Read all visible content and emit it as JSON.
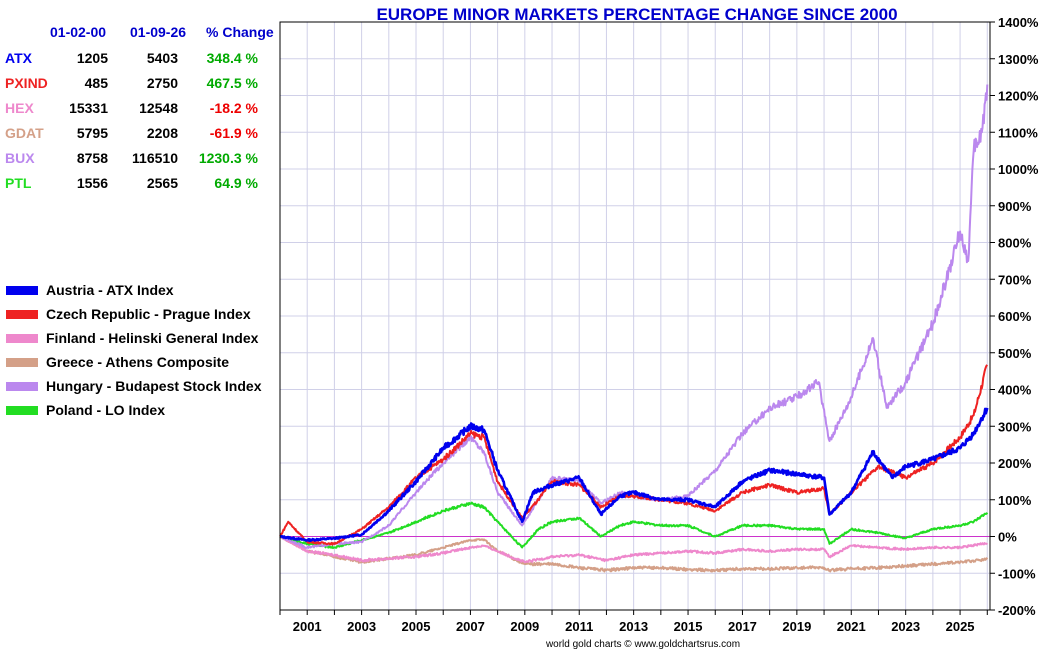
{
  "chart_data": {
    "type": "line",
    "title": "EUROPE MINOR MARKETS PERCENTAGE CHANGE SINCE 2000",
    "footer": "world gold charts © www.goldchartsrus.com",
    "ylim": [
      -200,
      1400
    ],
    "xlim": [
      2000,
      2026.1
    ],
    "y_ticks": [
      -200,
      -100,
      0,
      100,
      200,
      300,
      400,
      500,
      600,
      700,
      800,
      900,
      1000,
      1100,
      1200,
      1300,
      1400
    ],
    "y_tick_labels": [
      "-200%",
      "-100%",
      "0%",
      "100%",
      "200%",
      "300%",
      "400%",
      "500%",
      "600%",
      "700%",
      "800%",
      "900%",
      "1000%",
      "1100%",
      "1200%",
      "1300%",
      "1400%"
    ],
    "x_ticks": [
      2001,
      2003,
      2005,
      2007,
      2009,
      2011,
      2013,
      2015,
      2017,
      2019,
      2021,
      2023,
      2025
    ],
    "x_tick_labels": [
      "2001",
      "2003",
      "2005",
      "2007",
      "2009",
      "2011",
      "2013",
      "2015",
      "2017",
      "2019",
      "2021",
      "2023",
      "2025"
    ],
    "table": {
      "headers": [
        "01-02-00",
        "01-09-26",
        "% Change"
      ],
      "rows": [
        {
          "code": "ATX",
          "start": "1205",
          "end": "5403",
          "change": "348.4 %",
          "color": "#0000ee",
          "change_color": "#00aa00"
        },
        {
          "code": "PXIND",
          "start": "485",
          "end": "2750",
          "change": "467.5 %",
          "color": "#ee2222",
          "change_color": "#00aa00"
        },
        {
          "code": "HEX",
          "start": "15331",
          "end": "12548",
          "change": "-18.2 %",
          "color": "#ee88cc",
          "change_color": "#ee0000"
        },
        {
          "code": "GDAT",
          "start": "5795",
          "end": "2208",
          "change": "-61.9 %",
          "color": "#d4a088",
          "change_color": "#ee0000"
        },
        {
          "code": "BUX",
          "start": "8758",
          "end": "116510",
          "change": "1230.3 %",
          "color": "#bb88ee",
          "change_color": "#00aa00"
        },
        {
          "code": "PTL",
          "start": "1556",
          "end": "2565",
          "change": "64.9 %",
          "color": "#22dd22",
          "change_color": "#00aa00"
        }
      ]
    },
    "series": [
      {
        "name": "Austria - ATX Index",
        "color": "#0000ee",
        "points": [
          [
            2000,
            0
          ],
          [
            2001,
            -10
          ],
          [
            2002,
            -5
          ],
          [
            2003,
            5
          ],
          [
            2004,
            70
          ],
          [
            2005,
            150
          ],
          [
            2006,
            240
          ],
          [
            2007,
            300
          ],
          [
            2007.5,
            290
          ],
          [
            2008,
            180
          ],
          [
            2008.9,
            40
          ],
          [
            2009.3,
            120
          ],
          [
            2010,
            140
          ],
          [
            2011,
            160
          ],
          [
            2011.8,
            60
          ],
          [
            2012.5,
            110
          ],
          [
            2013,
            120
          ],
          [
            2014,
            100
          ],
          [
            2015,
            100
          ],
          [
            2016,
            80
          ],
          [
            2017,
            150
          ],
          [
            2018,
            180
          ],
          [
            2019,
            170
          ],
          [
            2020,
            160
          ],
          [
            2020.2,
            60
          ],
          [
            2021,
            120
          ],
          [
            2021.8,
            230
          ],
          [
            2022.5,
            160
          ],
          [
            2023,
            190
          ],
          [
            2024,
            210
          ],
          [
            2025,
            240
          ],
          [
            2025.5,
            280
          ],
          [
            2026,
            350
          ]
        ]
      },
      {
        "name": "Czech Republic - Prague Index",
        "color": "#ee2222",
        "points": [
          [
            2000,
            0
          ],
          [
            2000.3,
            40
          ],
          [
            2001,
            -15
          ],
          [
            2002,
            -20
          ],
          [
            2003,
            20
          ],
          [
            2004,
            80
          ],
          [
            2005,
            160
          ],
          [
            2006,
            210
          ],
          [
            2007,
            280
          ],
          [
            2007.5,
            270
          ],
          [
            2008,
            150
          ],
          [
            2008.9,
            50
          ],
          [
            2009.5,
            100
          ],
          [
            2010,
            150
          ],
          [
            2011,
            140
          ],
          [
            2011.8,
            80
          ],
          [
            2012.5,
            110
          ],
          [
            2013,
            110
          ],
          [
            2014,
            100
          ],
          [
            2015,
            90
          ],
          [
            2016,
            70
          ],
          [
            2017,
            120
          ],
          [
            2018,
            140
          ],
          [
            2019,
            120
          ],
          [
            2020,
            130
          ],
          [
            2020.2,
            60
          ],
          [
            2021,
            120
          ],
          [
            2022,
            190
          ],
          [
            2023,
            160
          ],
          [
            2024,
            200
          ],
          [
            2025,
            270
          ],
          [
            2025.5,
            330
          ],
          [
            2026,
            467
          ]
        ]
      },
      {
        "name": "Finland - Helinski General Index",
        "color": "#ee88cc",
        "points": [
          [
            2000,
            0
          ],
          [
            2001,
            -40
          ],
          [
            2002,
            -50
          ],
          [
            2003,
            -65
          ],
          [
            2004,
            -60
          ],
          [
            2005,
            -55
          ],
          [
            2006,
            -45
          ],
          [
            2007,
            -30
          ],
          [
            2007.5,
            -25
          ],
          [
            2008,
            -40
          ],
          [
            2009,
            -70
          ],
          [
            2010,
            -55
          ],
          [
            2011,
            -50
          ],
          [
            2012,
            -65
          ],
          [
            2013,
            -50
          ],
          [
            2014,
            -45
          ],
          [
            2015,
            -40
          ],
          [
            2016,
            -45
          ],
          [
            2017,
            -35
          ],
          [
            2018,
            -40
          ],
          [
            2019,
            -35
          ],
          [
            2020,
            -35
          ],
          [
            2020.2,
            -55
          ],
          [
            2021,
            -25
          ],
          [
            2022,
            -30
          ],
          [
            2023,
            -35
          ],
          [
            2024,
            -30
          ],
          [
            2025,
            -30
          ],
          [
            2026,
            -18
          ]
        ]
      },
      {
        "name": "Greece - Athens Composite",
        "color": "#d4a088",
        "points": [
          [
            2000,
            0
          ],
          [
            2001,
            -40
          ],
          [
            2002,
            -55
          ],
          [
            2003,
            -70
          ],
          [
            2004,
            -60
          ],
          [
            2005,
            -50
          ],
          [
            2006,
            -30
          ],
          [
            2007,
            -10
          ],
          [
            2007.5,
            -8
          ],
          [
            2008,
            -40
          ],
          [
            2009,
            -75
          ],
          [
            2010,
            -75
          ],
          [
            2011,
            -85
          ],
          [
            2012,
            -92
          ],
          [
            2013,
            -85
          ],
          [
            2014,
            -85
          ],
          [
            2015,
            -90
          ],
          [
            2016,
            -92
          ],
          [
            2017,
            -88
          ],
          [
            2018,
            -88
          ],
          [
            2019,
            -85
          ],
          [
            2020,
            -85
          ],
          [
            2020.2,
            -92
          ],
          [
            2021,
            -88
          ],
          [
            2022,
            -85
          ],
          [
            2023,
            -80
          ],
          [
            2024,
            -75
          ],
          [
            2025,
            -70
          ],
          [
            2026,
            -62
          ]
        ]
      },
      {
        "name": "Hungary - Budapest Stock Index",
        "color": "#bb88ee",
        "points": [
          [
            2000,
            0
          ],
          [
            2001,
            -30
          ],
          [
            2002,
            -20
          ],
          [
            2003,
            -15
          ],
          [
            2004,
            30
          ],
          [
            2005,
            120
          ],
          [
            2006,
            200
          ],
          [
            2007,
            270
          ],
          [
            2007.5,
            230
          ],
          [
            2008,
            120
          ],
          [
            2008.9,
            30
          ],
          [
            2009.5,
            100
          ],
          [
            2010,
            160
          ],
          [
            2011,
            150
          ],
          [
            2011.8,
            90
          ],
          [
            2012.5,
            120
          ],
          [
            2013,
            110
          ],
          [
            2014,
            100
          ],
          [
            2015,
            110
          ],
          [
            2016,
            180
          ],
          [
            2017,
            280
          ],
          [
            2018,
            350
          ],
          [
            2019,
            380
          ],
          [
            2019.8,
            420
          ],
          [
            2020.2,
            260
          ],
          [
            2021,
            380
          ],
          [
            2021.8,
            540
          ],
          [
            2022.3,
            350
          ],
          [
            2023,
            420
          ],
          [
            2024,
            580
          ],
          [
            2024.5,
            700
          ],
          [
            2025,
            830
          ],
          [
            2025.3,
            750
          ],
          [
            2025.5,
            1050
          ],
          [
            2025.8,
            1100
          ],
          [
            2026,
            1230
          ]
        ]
      },
      {
        "name": "Poland - LO Index",
        "color": "#22dd22",
        "points": [
          [
            2000,
            0
          ],
          [
            2001,
            -20
          ],
          [
            2002,
            -30
          ],
          [
            2003,
            -10
          ],
          [
            2004,
            10
          ],
          [
            2005,
            40
          ],
          [
            2006,
            70
          ],
          [
            2007,
            90
          ],
          [
            2007.5,
            80
          ],
          [
            2008,
            40
          ],
          [
            2008.9,
            -30
          ],
          [
            2009.5,
            20
          ],
          [
            2010,
            40
          ],
          [
            2011,
            50
          ],
          [
            2011.8,
            0
          ],
          [
            2012.5,
            30
          ],
          [
            2013,
            40
          ],
          [
            2014,
            30
          ],
          [
            2015,
            30
          ],
          [
            2016,
            0
          ],
          [
            2017,
            30
          ],
          [
            2018,
            30
          ],
          [
            2019,
            20
          ],
          [
            2020,
            20
          ],
          [
            2020.2,
            -20
          ],
          [
            2021,
            20
          ],
          [
            2022,
            10
          ],
          [
            2023,
            -5
          ],
          [
            2024,
            20
          ],
          [
            2025,
            30
          ],
          [
            2025.5,
            40
          ],
          [
            2026,
            65
          ]
        ]
      }
    ]
  }
}
